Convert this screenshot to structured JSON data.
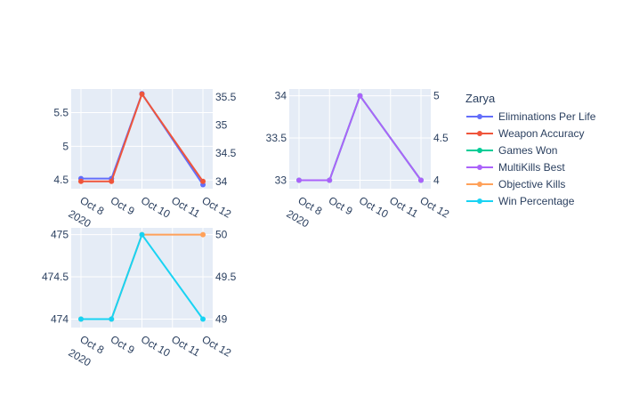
{
  "chart_data": {
    "type": "line",
    "legend": {
      "title": "Zarya",
      "placement": "right",
      "entries": [
        {
          "name": "Eliminations Per Life",
          "color": "#636efa"
        },
        {
          "name": "Weapon Accuracy",
          "color": "#ef553b"
        },
        {
          "name": "Games Won",
          "color": "#00cc96"
        },
        {
          "name": "MultiKills Best",
          "color": "#ab63fa"
        },
        {
          "name": "Objective Kills",
          "color": "#ffa15a"
        },
        {
          "name": "Win Percentage",
          "color": "#19d3f3"
        }
      ]
    },
    "panels": [
      {
        "id": "top-left",
        "x_ticks": [
          "Oct 8",
          "Oct 9",
          "Oct 10",
          "Oct 11",
          "Oct 12"
        ],
        "x_year_label": "2020",
        "y_left": {
          "range": [
            4.37,
            5.85
          ],
          "ticks": [
            "4.5",
            "5",
            "5.5"
          ],
          "tick_values": [
            4.5,
            5,
            5.5
          ]
        },
        "y_right": {
          "range": [
            33.87,
            35.64
          ],
          "ticks": [
            "34",
            "34.5",
            "35",
            "35.5"
          ],
          "tick_values": [
            34,
            34.5,
            35,
            35.5
          ]
        },
        "grid": true,
        "series": [
          {
            "name": "Eliminations Per Life",
            "axis": "left",
            "color": "#636efa",
            "x": [
              "2020-10-08",
              "2020-10-09",
              "2020-10-10",
              "2020-10-12"
            ],
            "y": [
              4.52,
              4.52,
              5.78,
              4.43
            ]
          },
          {
            "name": "Weapon Accuracy",
            "axis": "right",
            "color": "#ef553b",
            "x": [
              "2020-10-08",
              "2020-10-09",
              "2020-10-10",
              "2020-10-12"
            ],
            "y": [
              34,
              34,
              35.55,
              34
            ]
          }
        ]
      },
      {
        "id": "top-right",
        "x_ticks": [
          "Oct 8",
          "Oct 9",
          "Oct 10",
          "Oct 11",
          "Oct 12"
        ],
        "x_year_label": "2020",
        "y_left": {
          "range": [
            32.9,
            34.08
          ],
          "ticks": [
            "33",
            "33.5",
            "34"
          ],
          "tick_values": [
            33,
            33.5,
            34
          ]
        },
        "y_right": {
          "range": [
            3.9,
            5.08
          ],
          "ticks": [
            "4",
            "4.5",
            "5"
          ],
          "tick_values": [
            4,
            4.5,
            5
          ]
        },
        "grid": true,
        "series": [
          {
            "name": "Games Won",
            "axis": "left",
            "color": "#00cc96",
            "x": [
              "2020-10-08",
              "2020-10-09",
              "2020-10-10",
              "2020-10-12"
            ],
            "y": [
              33,
              33,
              34,
              33
            ]
          },
          {
            "name": "MultiKills Best",
            "axis": "right",
            "color": "#ab63fa",
            "x": [
              "2020-10-08",
              "2020-10-09",
              "2020-10-10",
              "2020-10-12"
            ],
            "y": [
              4,
              4,
              5,
              4
            ]
          }
        ]
      },
      {
        "id": "bottom-left",
        "x_ticks": [
          "Oct 8",
          "Oct 9",
          "Oct 10",
          "Oct 11",
          "Oct 12"
        ],
        "x_year_label": "2020",
        "y_left": {
          "range": [
            473.9,
            475.08
          ],
          "ticks": [
            "474",
            "474.5",
            "475"
          ],
          "tick_values": [
            474,
            474.5,
            475
          ]
        },
        "y_right": {
          "range": [
            48.9,
            50.08
          ],
          "ticks": [
            "49",
            "49.5",
            "50"
          ],
          "tick_values": [
            49,
            49.5,
            50
          ]
        },
        "grid": true,
        "series": [
          {
            "name": "Objective Kills",
            "axis": "left",
            "color": "#ffa15a",
            "x": [
              "2020-10-08",
              "2020-10-09",
              "2020-10-10",
              "2020-10-12"
            ],
            "y": [
              474,
              474,
              475,
              475
            ]
          },
          {
            "name": "Win Percentage",
            "axis": "right",
            "color": "#19d3f3",
            "x": [
              "2020-10-08",
              "2020-10-09",
              "2020-10-10",
              "2020-10-12"
            ],
            "y": [
              49,
              49,
              50,
              49
            ]
          }
        ]
      }
    ]
  }
}
